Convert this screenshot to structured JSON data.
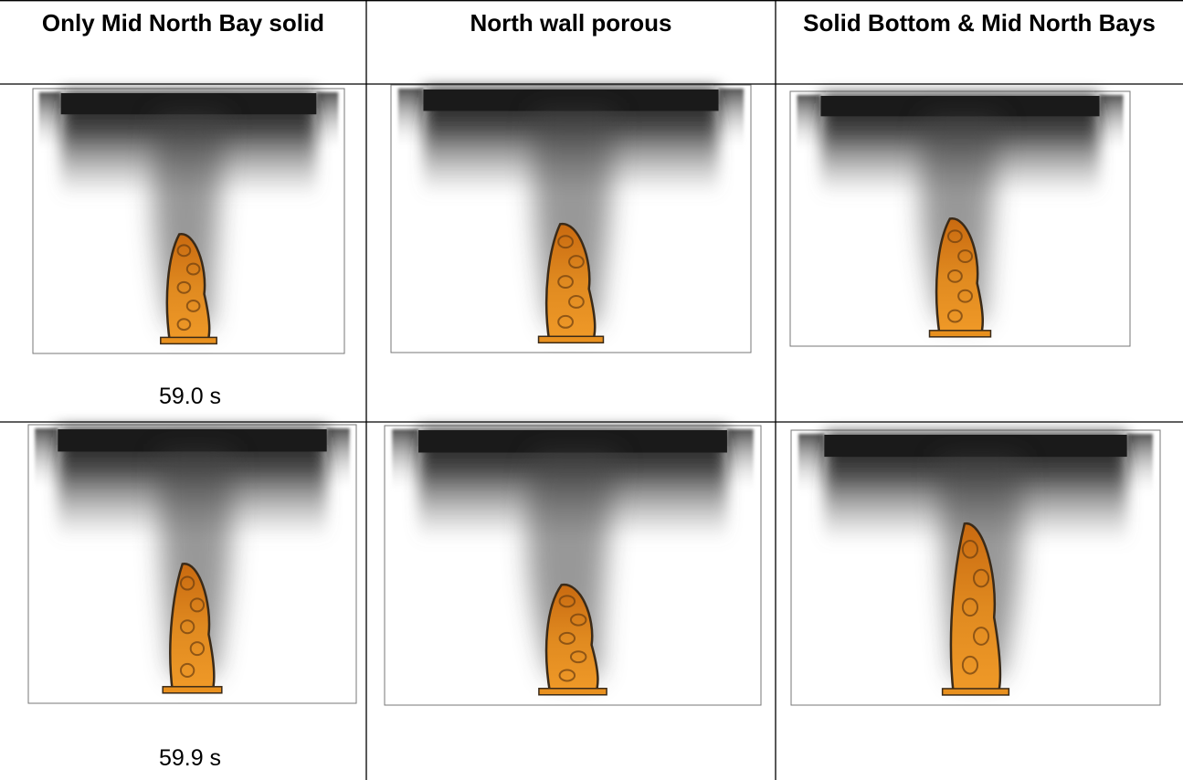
{
  "table": {
    "headers": [
      "Only Mid North Bay solid",
      "North wall porous",
      "Solid Bottom & Mid North Bays"
    ],
    "rows": [
      {
        "time": "59.0 s"
      },
      {
        "time": "59.9 s"
      }
    ]
  }
}
